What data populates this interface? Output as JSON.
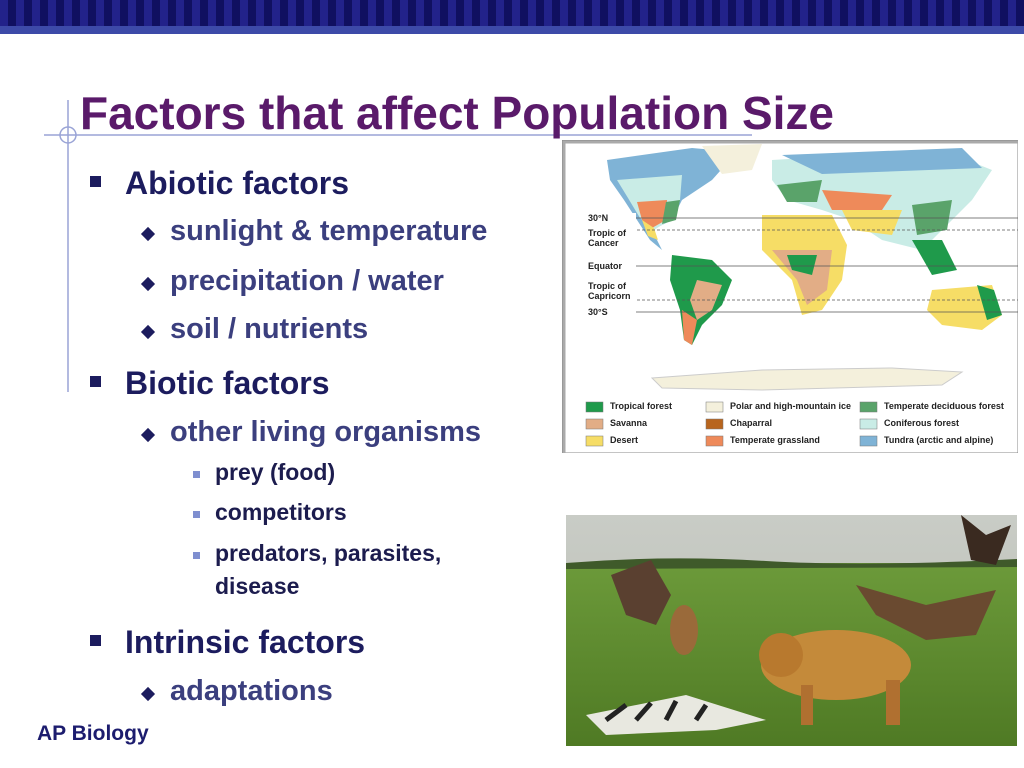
{
  "header": {
    "title": "Factors that affect Population Size"
  },
  "bullets": [
    {
      "text": "Abiotic factors",
      "items": [
        {
          "text": "sunlight & temperature"
        },
        {
          "text": "precipitation / water"
        },
        {
          "text": "soil / nutrients"
        }
      ]
    },
    {
      "text": "Biotic factors",
      "items": [
        {
          "text": "other living organisms",
          "items": [
            "prey (food)",
            "competitors",
            "predators, parasites, disease"
          ]
        }
      ]
    },
    {
      "text": "Intrinsic factors",
      "items": [
        {
          "text": "adaptations"
        }
      ]
    }
  ],
  "map": {
    "latitudes": [
      "30°N",
      "Tropic of Cancer",
      "Equator",
      "Tropic of Capricorn",
      "30°S"
    ],
    "legend": [
      {
        "label": "Tropical forest",
        "color": "#1f9a4b"
      },
      {
        "label": "Polar and high-mountain ice",
        "color": "#f4f0dc"
      },
      {
        "label": "Temperate deciduous forest",
        "color": "#5aa36a"
      },
      {
        "label": "Savanna",
        "color": "#e2ad86"
      },
      {
        "label": "Chaparral",
        "color": "#b8651e"
      },
      {
        "label": "Coniferous forest",
        "color": "#c9ece6"
      },
      {
        "label": "Desert",
        "color": "#f6dd66"
      },
      {
        "label": "Temperate grassland",
        "color": "#ee8a5a"
      },
      {
        "label": "Tundra (arctic and alpine)",
        "color": "#7fb3d6"
      }
    ]
  },
  "footer": "AP Biology"
}
